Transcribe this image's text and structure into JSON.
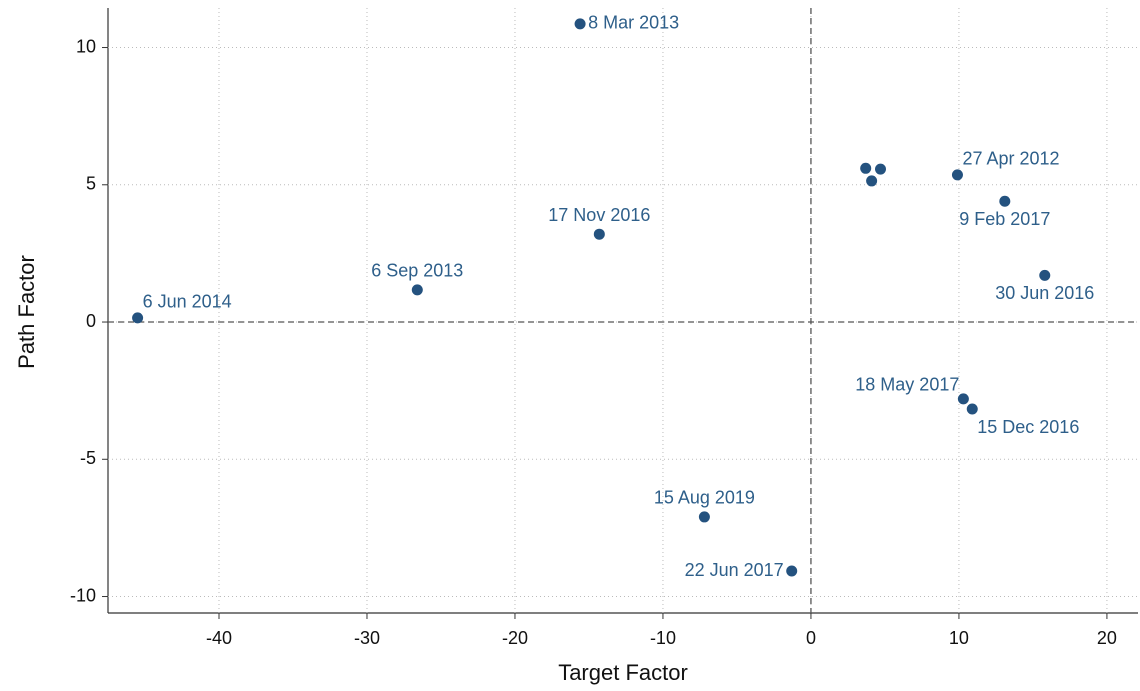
{
  "chart_data": {
    "type": "scatter",
    "x_label": "Target Factor",
    "y_label": "Path Factor",
    "x": [
      -45.5,
      -26.6,
      -14.3,
      -15.6,
      -7.2,
      -1.3,
      3.7,
      4.1,
      4.7,
      9.9,
      13.1,
      15.8,
      10.3,
      10.9
    ],
    "values": [
      0.15,
      1.17,
      3.2,
      10.86,
      -7.1,
      -9.07,
      5.6,
      5.14,
      5.57,
      5.36,
      4.4,
      1.7,
      -2.8,
      -3.17
    ],
    "labels": [
      "6 Jun 2014",
      "6 Sep 2013",
      "17 Nov 2016",
      "8 Mar 2013",
      "15 Aug 2019",
      "22 Jun 2017",
      null,
      null,
      null,
      "27 Apr 2012",
      "9 Feb 2017",
      "30 Jun 2016",
      "18 May 2017",
      "15 Dec 2016"
    ],
    "color": "#24527f",
    "xlim": [
      -47.5,
      22.1
    ],
    "xticks": [
      -40,
      -30,
      -20,
      -10,
      0,
      10,
      20
    ],
    "ylim": [
      -10.6,
      11.44
    ],
    "yticks": [
      -10,
      -5,
      0,
      5,
      10
    ],
    "grid": true,
    "xline": 0,
    "yline": 0
  }
}
